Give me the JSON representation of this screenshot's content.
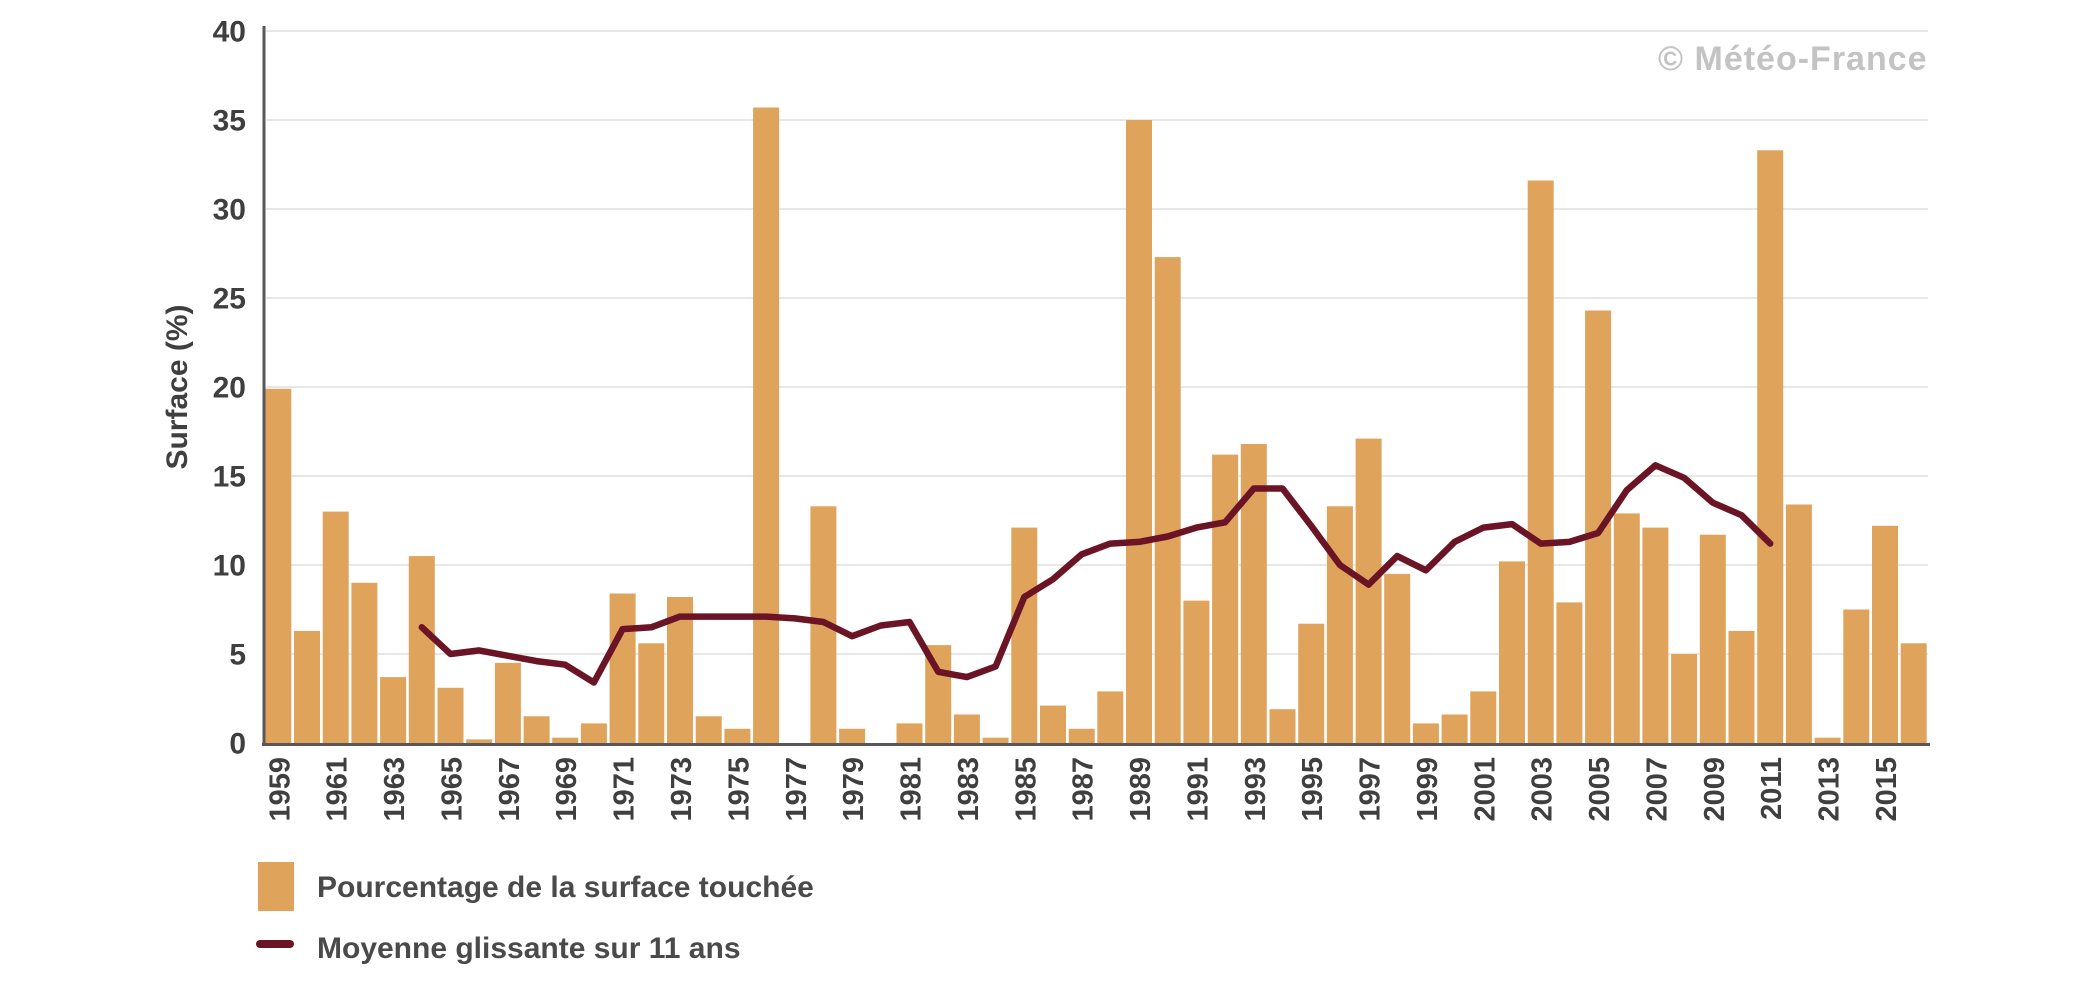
{
  "watermark": {
    "text": "© Météo-France"
  },
  "y_axis": {
    "title": "Surface (%)",
    "ticks": [
      0,
      5,
      10,
      15,
      20,
      25,
      30,
      35,
      40
    ],
    "range": [
      0,
      40
    ]
  },
  "x_axis": {
    "labels": [
      "1959",
      "1961",
      "1963",
      "1965",
      "1967",
      "1969",
      "1971",
      "1973",
      "1975",
      "1977",
      "1979",
      "1981",
      "1983",
      "1985",
      "1987",
      "1989",
      "1991",
      "1993",
      "1995",
      "1997",
      "1999",
      "2001",
      "2003",
      "2005",
      "2007",
      "2009",
      "2011",
      "2013",
      "2015"
    ]
  },
  "legend": {
    "items": [
      {
        "label": "Pourcentage de la surface touchée",
        "swatch": "bar"
      },
      {
        "label": "Moyenne glissante sur 11 ans",
        "swatch": "line"
      }
    ]
  },
  "colors": {
    "bar": "#DFA35C",
    "line": "#6B1425",
    "grid": "#E7E7E7",
    "axis": "#58585A",
    "tick_text": "#3F3F3F",
    "legend_text": "#4A4A4A",
    "watermark": "#C3C3C3"
  },
  "chart_data": {
    "type": "bar",
    "title": "",
    "xlabel": "",
    "ylabel": "Surface (%)",
    "ylim": [
      0,
      40
    ],
    "grid": true,
    "legend_position": "bottom-left",
    "x": [
      1959,
      1960,
      1961,
      1962,
      1963,
      1964,
      1965,
      1966,
      1967,
      1968,
      1969,
      1970,
      1971,
      1972,
      1973,
      1974,
      1975,
      1976,
      1977,
      1978,
      1979,
      1980,
      1981,
      1982,
      1983,
      1984,
      1985,
      1986,
      1987,
      1988,
      1989,
      1990,
      1991,
      1992,
      1993,
      1994,
      1995,
      1996,
      1997,
      1998,
      1999,
      2000,
      2001,
      2002,
      2003,
      2004,
      2005,
      2006,
      2007,
      2008,
      2009,
      2010,
      2011,
      2012,
      2013,
      2014,
      2015,
      2016
    ],
    "series": [
      {
        "name": "Pourcentage de la surface touchée",
        "type": "bar",
        "values": [
          19.9,
          6.3,
          13.0,
          9.0,
          3.7,
          10.5,
          3.1,
          0.2,
          4.5,
          1.5,
          0.3,
          1.1,
          8.4,
          5.6,
          8.2,
          1.5,
          0.8,
          35.7,
          0.0,
          13.3,
          0.8,
          0.0,
          1.1,
          5.5,
          1.6,
          0.3,
          12.1,
          2.1,
          0.8,
          2.9,
          35.0,
          27.3,
          8.0,
          16.2,
          16.8,
          1.9,
          6.7,
          13.3,
          17.1,
          9.5,
          1.1,
          1.6,
          2.9,
          10.2,
          31.6,
          7.9,
          24.3,
          12.9,
          12.1,
          5.0,
          11.7,
          6.3,
          33.3,
          13.4,
          0.3,
          7.5,
          12.2,
          5.6
        ]
      },
      {
        "name": "Moyenne glissante sur 11 ans",
        "type": "line",
        "x_start": 1964,
        "x_end": 2011,
        "values": [
          6.5,
          5.0,
          5.2,
          4.9,
          4.6,
          4.4,
          3.4,
          6.4,
          6.5,
          7.1,
          7.1,
          7.1,
          7.1,
          7.0,
          6.8,
          6.0,
          6.6,
          6.8,
          4.0,
          3.7,
          4.3,
          8.2,
          9.2,
          10.6,
          11.2,
          11.3,
          11.6,
          12.1,
          12.4,
          14.3,
          14.3,
          12.2,
          10.0,
          8.9,
          10.5,
          9.7,
          11.3,
          12.1,
          12.3,
          11.2,
          11.3,
          11.8,
          14.2,
          15.6,
          14.9,
          13.5,
          12.8,
          11.2
        ]
      }
    ]
  }
}
